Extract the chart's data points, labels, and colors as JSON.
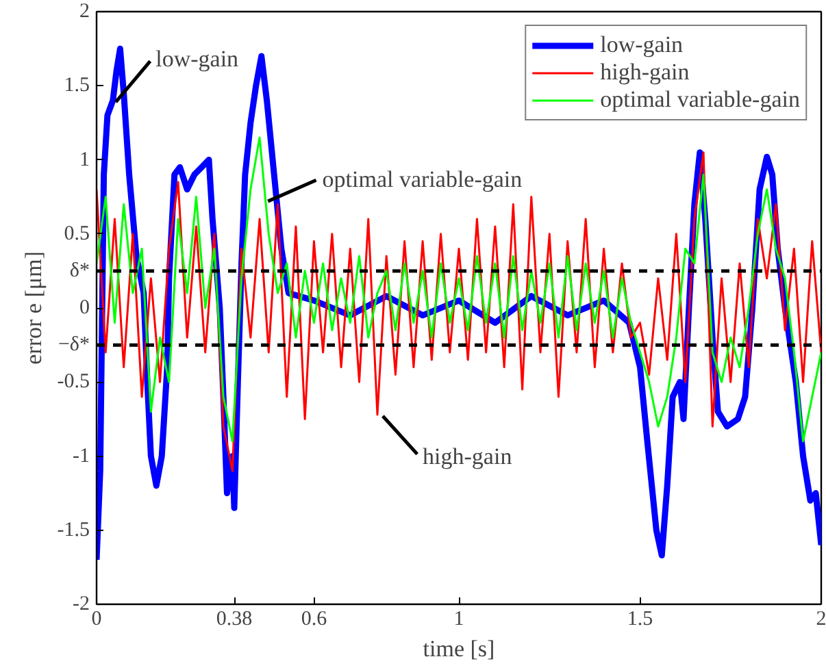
{
  "chart_data": {
    "type": "line",
    "xlabel": "time [s]",
    "ylabel": "error e [μm]",
    "xlim": [
      0,
      2
    ],
    "ylim": [
      -2,
      2
    ],
    "xticks": [
      0,
      0.38,
      0.6,
      1,
      1.5,
      2
    ],
    "yticks": [
      -2,
      -1.5,
      -1,
      -0.5,
      {
        "value": -0.25,
        "label": "−δ*"
      },
      0,
      {
        "value": 0.25,
        "label": "δ*"
      },
      0.5,
      1,
      1.5,
      2
    ],
    "grid": false,
    "legend": "top right",
    "line_style": "solid",
    "marker": "none",
    "ref_lines": [
      {
        "axis": "y",
        "value": 0.25,
        "color": "#000000",
        "line_style": "dashed"
      },
      {
        "axis": "y",
        "value": -0.25,
        "color": "#000000",
        "line_style": "dashed"
      }
    ],
    "annotations": [
      {
        "text": "low-gain",
        "x": 0.053,
        "y": 1.39
      },
      {
        "text": "optimal variable-gain",
        "x": 0.473,
        "y": 0.72
      },
      {
        "text": "high-gain",
        "x": 0.79,
        "y": -0.73
      }
    ],
    "series": [
      {
        "name": "low-gain",
        "color": "#0000ff",
        "x": [
          0,
          0.01,
          0.02,
          0.03,
          0.045,
          0.055,
          0.065,
          0.075,
          0.09,
          0.11,
          0.13,
          0.14,
          0.15,
          0.165,
          0.18,
          0.195,
          0.2,
          0.215,
          0.23,
          0.25,
          0.27,
          0.29,
          0.31,
          0.32,
          0.34,
          0.35,
          0.36,
          0.375,
          0.38,
          0.39,
          0.4,
          0.41,
          0.425,
          0.44,
          0.455,
          0.47,
          0.49,
          0.51,
          0.53,
          0.6,
          0.7,
          0.8,
          0.9,
          1.0,
          1.1,
          1.2,
          1.3,
          1.4,
          1.47,
          1.5,
          1.52,
          1.545,
          1.56,
          1.575,
          1.59,
          1.61,
          1.62,
          1.635,
          1.65,
          1.665,
          1.68,
          1.7,
          1.715,
          1.74,
          1.77,
          1.79,
          1.81,
          1.83,
          1.85,
          1.865,
          1.88,
          1.9,
          1.93,
          1.95,
          1.97,
          1.985,
          2.0
        ],
        "values": [
          -1.7,
          -1.1,
          0.9,
          1.3,
          1.4,
          1.6,
          1.75,
          1.45,
          0.9,
          0.35,
          0.1,
          -0.5,
          -1.0,
          -1.2,
          -1.0,
          -0.4,
          0.2,
          0.9,
          0.95,
          0.8,
          0.9,
          0.95,
          1.0,
          0.6,
          0.0,
          -0.6,
          -1.25,
          -1.0,
          -1.35,
          -0.5,
          0.3,
          0.9,
          1.25,
          1.5,
          1.7,
          1.4,
          0.9,
          0.4,
          0.1,
          0.05,
          -0.05,
          0.08,
          -0.05,
          0.05,
          -0.1,
          0.08,
          -0.05,
          0.05,
          -0.1,
          -0.4,
          -0.9,
          -1.5,
          -1.67,
          -1.2,
          -0.6,
          -0.5,
          -0.75,
          0.0,
          0.7,
          1.05,
          0.6,
          -0.2,
          -0.7,
          -0.8,
          -0.75,
          -0.6,
          0.0,
          0.8,
          1.02,
          0.9,
          0.4,
          0.0,
          -0.5,
          -1.0,
          -1.3,
          -1.25,
          -1.6
        ]
      },
      {
        "name": "high-gain",
        "color": "#ff0000",
        "x": [
          0,
          0.025,
          0.05,
          0.075,
          0.1,
          0.125,
          0.15,
          0.175,
          0.2,
          0.225,
          0.25,
          0.275,
          0.3,
          0.325,
          0.35,
          0.375,
          0.4,
          0.425,
          0.45,
          0.475,
          0.5,
          0.525,
          0.55,
          0.575,
          0.6,
          0.625,
          0.65,
          0.675,
          0.7,
          0.725,
          0.75,
          0.775,
          0.8,
          0.825,
          0.85,
          0.875,
          0.9,
          0.925,
          0.95,
          0.975,
          1.0,
          1.025,
          1.05,
          1.075,
          1.1,
          1.125,
          1.15,
          1.175,
          1.2,
          1.225,
          1.25,
          1.275,
          1.3,
          1.325,
          1.35,
          1.375,
          1.4,
          1.425,
          1.45,
          1.475,
          1.5,
          1.525,
          1.55,
          1.575,
          1.6,
          1.625,
          1.65,
          1.675,
          1.7,
          1.725,
          1.75,
          1.775,
          1.8,
          1.825,
          1.85,
          1.875,
          1.9,
          1.925,
          1.95,
          1.975,
          2.0
        ],
        "values": [
          0.8,
          -0.3,
          0.6,
          -0.4,
          0.5,
          -0.6,
          0.2,
          -0.5,
          0.4,
          0.85,
          -0.2,
          0.55,
          -0.3,
          0.5,
          -0.8,
          -1.1,
          0.4,
          -0.2,
          0.6,
          -0.3,
          0.7,
          -0.6,
          0.55,
          -0.75,
          0.45,
          -0.3,
          0.5,
          -0.4,
          0.4,
          -0.5,
          0.6,
          -0.72,
          0.35,
          -0.45,
          0.45,
          -0.4,
          0.45,
          -0.35,
          0.5,
          -0.3,
          0.4,
          -0.35,
          0.6,
          -0.3,
          0.55,
          -0.4,
          0.7,
          -0.55,
          0.75,
          -0.3,
          0.5,
          -0.6,
          0.45,
          -0.3,
          0.6,
          -0.4,
          0.4,
          -0.3,
          0.3,
          -0.2,
          -0.1,
          -0.45,
          0.2,
          -0.35,
          0.5,
          -0.5,
          0.6,
          1.05,
          -0.8,
          0.2,
          -0.5,
          0.3,
          -0.4,
          0.6,
          0.2,
          0.7,
          -0.15,
          0.4,
          -0.5,
          0.45,
          -0.3
        ]
      },
      {
        "name": "optimal variable-gain",
        "color": "#00ff00",
        "x": [
          0,
          0.025,
          0.05,
          0.075,
          0.1,
          0.125,
          0.15,
          0.175,
          0.2,
          0.225,
          0.25,
          0.275,
          0.3,
          0.325,
          0.35,
          0.375,
          0.4,
          0.425,
          0.45,
          0.475,
          0.5,
          0.525,
          0.55,
          0.575,
          0.6,
          0.625,
          0.65,
          0.675,
          0.7,
          0.725,
          0.75,
          0.775,
          0.8,
          0.825,
          0.85,
          0.875,
          0.9,
          0.925,
          0.95,
          0.975,
          1.0,
          1.025,
          1.05,
          1.075,
          1.1,
          1.125,
          1.15,
          1.175,
          1.2,
          1.225,
          1.25,
          1.275,
          1.3,
          1.325,
          1.35,
          1.375,
          1.4,
          1.425,
          1.45,
          1.475,
          1.5,
          1.525,
          1.55,
          1.575,
          1.6,
          1.625,
          1.65,
          1.675,
          1.7,
          1.725,
          1.75,
          1.775,
          1.8,
          1.825,
          1.85,
          1.875,
          1.9,
          1.925,
          1.95,
          1.975,
          2.0
        ],
        "values": [
          0.3,
          0.75,
          -0.1,
          0.7,
          0.1,
          0.4,
          -0.7,
          -0.2,
          -0.5,
          0.6,
          0.1,
          0.75,
          0.0,
          0.4,
          -0.6,
          -0.9,
          0.2,
          0.8,
          1.15,
          0.5,
          0.1,
          0.3,
          -0.2,
          0.25,
          -0.1,
          0.3,
          -0.15,
          0.2,
          -0.1,
          0.35,
          -0.2,
          0.1,
          0.25,
          -0.15,
          0.3,
          -0.1,
          0.25,
          -0.2,
          0.3,
          -0.1,
          0.2,
          -0.15,
          0.35,
          -0.1,
          0.3,
          -0.2,
          0.35,
          -0.15,
          0.25,
          -0.1,
          0.3,
          -0.2,
          0.35,
          -0.15,
          0.3,
          -0.1,
          0.25,
          -0.2,
          0.2,
          -0.1,
          -0.3,
          -0.5,
          -0.8,
          -0.6,
          -0.2,
          0.4,
          0.3,
          0.9,
          -0.3,
          -0.5,
          -0.2,
          -0.4,
          0.0,
          0.5,
          0.8,
          0.4,
          0.2,
          -0.3,
          -0.9,
          -0.6,
          -0.3
        ]
      }
    ]
  }
}
